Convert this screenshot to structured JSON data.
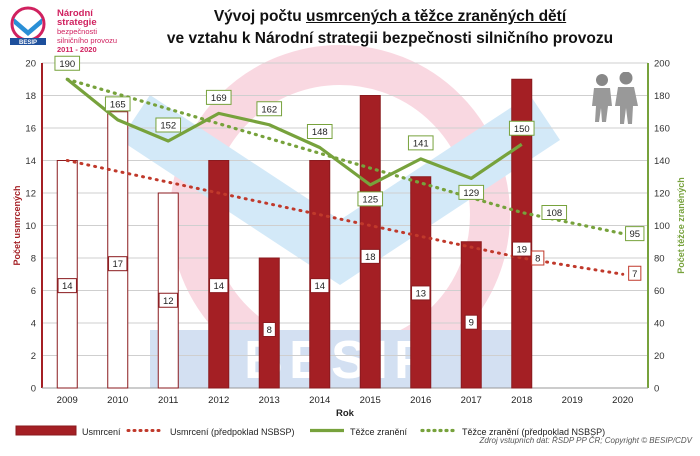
{
  "logo": {
    "line1": "Národní strategie",
    "line2": "bezpečnosti",
    "line3": "silničního provozu",
    "line4": "2011 - 2020",
    "badge": "BESIP"
  },
  "title": {
    "part1": "Vývoj počtu ",
    "underlined": "usmrcených a těžce zraněných dětí",
    "line2": "ve vztahu k Národní strategii bezpečnosti silničního provozu"
  },
  "watermark": "BESIP",
  "source_note": "Zdroj vstupních dat: ŘSDP PP ČR; Copyright © BESIP/CDV",
  "colors": {
    "bar": "#a41f24",
    "bar_outline": "#8a1a1e",
    "deaths_forecast": "#c0392b",
    "injured": "#77a23c",
    "injured_forecast": "#77a23c",
    "axis_left": "#a41f24",
    "axis_right": "#77a23c"
  },
  "chart_data": {
    "type": "bar",
    "xlabel": "Rok",
    "ylabel_left": "Počet usmrcených",
    "ylabel_right": "Počet těžce zraněných",
    "ylim_left": [
      0,
      20
    ],
    "ylim_right": [
      0,
      200
    ],
    "yticks_left": [
      0,
      2,
      4,
      6,
      8,
      10,
      12,
      14,
      16,
      18,
      20
    ],
    "yticks_right": [
      0,
      20,
      40,
      60,
      80,
      100,
      120,
      140,
      160,
      180,
      200
    ],
    "categories": [
      "2009",
      "2010",
      "2011",
      "2012",
      "2013",
      "2014",
      "2015",
      "2016",
      "2017",
      "2018",
      "2019",
      "2020"
    ],
    "grid": true,
    "legend_position": "bottom",
    "series": [
      {
        "name": "Usmrcení",
        "kind": "bar",
        "axis": "left",
        "values": [
          14,
          17,
          12,
          14,
          8,
          14,
          18,
          13,
          9,
          19,
          null,
          null
        ],
        "hollow_bars": [
          true,
          true,
          true,
          false,
          false,
          false,
          false,
          false,
          false,
          false,
          false,
          false
        ]
      },
      {
        "name": "Usmrcení (předpoklad NSBSP)",
        "kind": "dotted-line",
        "axis": "left",
        "values": [
          14,
          null,
          null,
          null,
          null,
          null,
          null,
          null,
          null,
          8,
          null,
          7
        ]
      },
      {
        "name": "Těžce zranění",
        "kind": "line",
        "axis": "right",
        "values": [
          190,
          165,
          152,
          169,
          162,
          148,
          125,
          141,
          129,
          150,
          null,
          null
        ]
      },
      {
        "name": "Těžce zranění (předpoklad NSBSP)",
        "kind": "dotted-line",
        "axis": "right",
        "values": [
          190,
          null,
          null,
          null,
          null,
          null,
          null,
          null,
          null,
          108,
          null,
          95
        ]
      }
    ]
  }
}
